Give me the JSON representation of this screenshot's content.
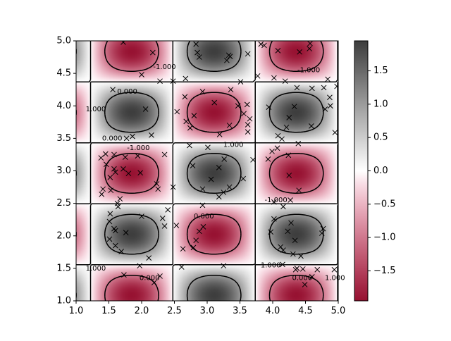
{
  "chart_data": {
    "type": "heatmap",
    "title": "",
    "xlabel": "",
    "ylabel": "",
    "xlim": [
      1.0,
      5.0
    ],
    "ylim": [
      1.0,
      5.0
    ],
    "grid": false,
    "x_tick_labels": [
      "1.0",
      "1.5",
      "2.0",
      "2.5",
      "3.0",
      "3.5",
      "4.0",
      "4.5",
      "5.0"
    ],
    "y_tick_labels": [
      "1.0",
      "1.5",
      "2.0",
      "2.5",
      "3.0",
      "3.5",
      "4.0",
      "4.5",
      "5.0"
    ],
    "field": {
      "description_formula": "sin(3x)*cos(3y) scaled, peaks near +/-1.9",
      "vmin": -1.95,
      "vmax": 1.95,
      "colormap": [
        "#8b1030",
        "#c05060",
        "#f2d6d0",
        "#ffffff",
        "#d6d6d6",
        "#8a8a8a",
        "#333333"
      ]
    },
    "colorbar": {
      "tick_labels": [
        "−1.5",
        "−1.0",
        "−0.5",
        "0.0",
        "0.5",
        "1.0",
        "1.5"
      ],
      "tick_values": [
        -1.5,
        -1.0,
        -0.5,
        0.0,
        0.5,
        1.0,
        1.5
      ]
    },
    "contour_levels": [
      -1.0,
      0.0,
      1.0
    ],
    "contour_labels": [
      {
        "text": "-1.000",
        "x": 2.35,
        "y": 4.6
      },
      {
        "text": "-1.000",
        "x": 4.55,
        "y": 4.55
      },
      {
        "text": "0.000",
        "x": 1.78,
        "y": 4.22
      },
      {
        "text": "1.000",
        "x": 1.3,
        "y": 3.95
      },
      {
        "text": "0.000",
        "x": 1.55,
        "y": 3.5
      },
      {
        "text": "-1.000",
        "x": 1.95,
        "y": 3.35
      },
      {
        "text": "1.000",
        "x": 3.4,
        "y": 3.4
      },
      {
        "text": "-1.000",
        "x": 4.05,
        "y": 2.55
      },
      {
        "text": "0.000",
        "x": 2.95,
        "y": 2.3
      },
      {
        "text": "1.000",
        "x": 1.3,
        "y": 1.5
      },
      {
        "text": "0.000",
        "x": 2.12,
        "y": 1.35
      },
      {
        "text": "1.000",
        "x": 3.97,
        "y": 1.55
      },
      {
        "text": "0.000",
        "x": 4.45,
        "y": 1.35
      },
      {
        "text": "1.000",
        "x": 4.95,
        "y": 1.35
      }
    ],
    "scatter_points": [
      [
        1.72,
        4.98
      ],
      [
        2.17,
        4.82
      ],
      [
        2.83,
        4.95
      ],
      [
        2.85,
        4.82
      ],
      [
        2.88,
        4.75
      ],
      [
        3.33,
        4.78
      ],
      [
        3.35,
        4.76
      ],
      [
        3.3,
        4.7
      ],
      [
        3.62,
        4.8
      ],
      [
        3.82,
        4.95
      ],
      [
        3.87,
        4.93
      ],
      [
        4.08,
        4.85
      ],
      [
        4.41,
        4.83
      ],
      [
        4.57,
        4.96
      ],
      [
        4.56,
        4.88
      ],
      [
        2.0,
        4.48
      ],
      [
        2.48,
        4.38
      ],
      [
        2.28,
        4.38
      ],
      [
        1.56,
        4.25
      ],
      [
        2.67,
        4.42
      ],
      [
        3.51,
        4.37
      ],
      [
        3.77,
        4.46
      ],
      [
        4.02,
        4.43
      ],
      [
        4.19,
        4.38
      ],
      [
        4.37,
        4.28
      ],
      [
        4.6,
        4.27
      ],
      [
        4.78,
        4.28
      ],
      [
        4.84,
        4.41
      ],
      [
        4.98,
        4.3
      ],
      [
        4.87,
        4.13
      ],
      [
        4.88,
        4.0
      ],
      [
        4.8,
        3.95
      ],
      [
        2.66,
        4.14
      ],
      [
        2.93,
        4.22
      ],
      [
        3.11,
        4.05
      ],
      [
        3.36,
        4.25
      ],
      [
        3.47,
        4.0
      ],
      [
        3.61,
        4.02
      ],
      [
        3.56,
        3.88
      ],
      [
        3.94,
        3.98
      ],
      [
        2.06,
        3.95
      ],
      [
        2.54,
        3.91
      ],
      [
        2.8,
        3.85
      ],
      [
        2.68,
        3.76
      ],
      [
        2.74,
        3.66
      ],
      [
        3.34,
        3.7
      ],
      [
        3.62,
        3.71
      ],
      [
        3.65,
        3.8
      ],
      [
        4.25,
        3.82
      ],
      [
        4.33,
        3.99
      ],
      [
        4.59,
        3.69
      ],
      [
        4.95,
        3.59
      ],
      [
        3.19,
        3.56
      ],
      [
        3.62,
        3.6
      ],
      [
        4.21,
        3.67
      ],
      [
        1.77,
        3.5
      ],
      [
        1.86,
        3.53
      ],
      [
        2.15,
        3.55
      ],
      [
        2.73,
        3.39
      ],
      [
        3.01,
        3.36
      ],
      [
        4.08,
        3.54
      ],
      [
        4.14,
        3.49
      ],
      [
        4.39,
        3.42
      ],
      [
        4.07,
        3.35
      ],
      [
        4.24,
        3.24
      ],
      [
        1.38,
        3.2
      ],
      [
        1.45,
        3.26
      ],
      [
        1.58,
        3.25
      ],
      [
        1.75,
        3.21
      ],
      [
        1.94,
        3.23
      ],
      [
        2.35,
        3.25
      ],
      [
        3.26,
        3.18
      ],
      [
        3.93,
        3.18
      ],
      [
        3.99,
        3.3
      ],
      [
        1.46,
        3.1
      ],
      [
        1.58,
        3.03
      ],
      [
        1.6,
        2.98
      ],
      [
        1.72,
        3.03
      ],
      [
        1.8,
        2.96
      ],
      [
        1.98,
        2.97
      ],
      [
        2.78,
        3.08
      ],
      [
        3.18,
        3.05
      ],
      [
        3.7,
        3.17
      ],
      [
        1.52,
        2.9
      ],
      [
        3.06,
        2.87
      ],
      [
        3.55,
        2.88
      ],
      [
        4.25,
        2.93
      ],
      [
        3.34,
        2.75
      ],
      [
        2.23,
        2.8
      ],
      [
        2.25,
        2.72
      ],
      [
        2.48,
        2.75
      ],
      [
        2.93,
        2.72
      ],
      [
        3.25,
        2.67
      ],
      [
        1.41,
        2.72
      ],
      [
        1.53,
        2.7
      ],
      [
        1.63,
        2.5
      ],
      [
        1.67,
        2.57
      ],
      [
        4.4,
        2.7
      ],
      [
        4.27,
        2.55
      ],
      [
        4.16,
        2.45
      ],
      [
        4.02,
        2.52
      ],
      [
        1.39,
        2.64
      ],
      [
        1.64,
        2.45
      ],
      [
        2.4,
        2.4
      ],
      [
        2.93,
        2.47
      ],
      [
        3.18,
        2.6
      ],
      [
        2.0,
        2.3
      ],
      [
        2.32,
        2.27
      ],
      [
        4.28,
        2.2
      ],
      [
        4.23,
        2.07
      ],
      [
        1.52,
        2.34
      ],
      [
        1.51,
        2.22
      ],
      [
        2.53,
        2.16
      ],
      [
        2.94,
        2.14
      ],
      [
        4.02,
        2.26
      ],
      [
        4.77,
        2.11
      ],
      [
        4.75,
        2.04
      ],
      [
        1.58,
        2.11
      ],
      [
        1.6,
        2.08
      ],
      [
        2.35,
        2.15
      ],
      [
        2.88,
        2.07
      ],
      [
        3.97,
        2.06
      ],
      [
        1.76,
        2.05
      ],
      [
        2.83,
        1.93
      ],
      [
        4.12,
        1.83
      ],
      [
        4.16,
        1.78
      ],
      [
        1.51,
        1.95
      ],
      [
        1.6,
        1.85
      ],
      [
        2.79,
        1.82
      ],
      [
        4.34,
        1.93
      ],
      [
        2.63,
        1.8
      ],
      [
        4.31,
        1.72
      ],
      [
        1.69,
        1.76
      ],
      [
        4.15,
        1.56
      ],
      [
        4.43,
        1.69
      ],
      [
        2.11,
        1.66
      ],
      [
        1.97,
        1.54
      ],
      [
        2.61,
        1.52
      ],
      [
        3.25,
        1.54
      ],
      [
        4.37,
        1.5
      ],
      [
        4.35,
        1.48
      ],
      [
        4.46,
        1.49
      ],
      [
        1.73,
        1.4
      ],
      [
        2.28,
        1.38
      ],
      [
        4.68,
        1.48
      ],
      [
        4.94,
        1.48
      ],
      [
        4.6,
        1.37
      ],
      [
        2.19,
        1.28
      ],
      [
        4.49,
        1.25
      ]
    ]
  }
}
